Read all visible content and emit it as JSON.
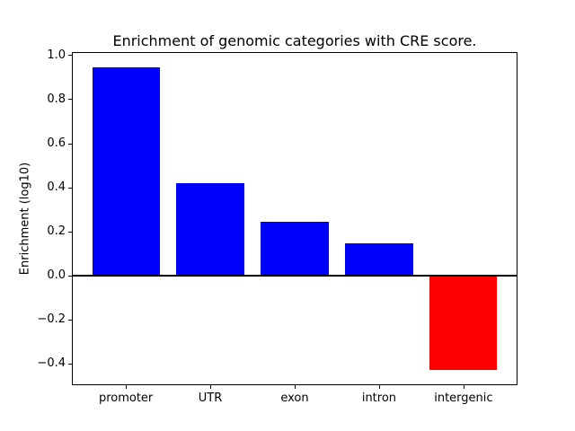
{
  "figure": {
    "background": "#ffffff"
  },
  "chart_data": {
    "type": "bar",
    "title": "Enrichment of genomic categories with CRE score.",
    "xlabel": "",
    "ylabel": "Enrichment (log10)",
    "categories": [
      "promoter",
      "UTR",
      "exon",
      "intron",
      "intergenic"
    ],
    "values": [
      0.945,
      0.42,
      0.245,
      0.145,
      -0.43
    ],
    "bar_colors": [
      "#0000ff",
      "#0000ff",
      "#0000ff",
      "#0000ff",
      "#ff0000"
    ],
    "positive_color": "#0000ff",
    "negative_color": "#ff0000",
    "bar_width": 0.8,
    "ylim": [
      -0.499,
      1.014
    ],
    "xlim": [
      -0.64,
      4.64
    ],
    "yticks": [
      1.0,
      0.8,
      0.6,
      0.4,
      0.2,
      0.0,
      -0.2,
      -0.4
    ],
    "ytick_labels": [
      "1.0",
      "0.8",
      "0.6",
      "0.4",
      "0.2",
      "0.0",
      "−0.2",
      "−0.4"
    ],
    "grid": false,
    "legend": false,
    "zero_line": true
  }
}
